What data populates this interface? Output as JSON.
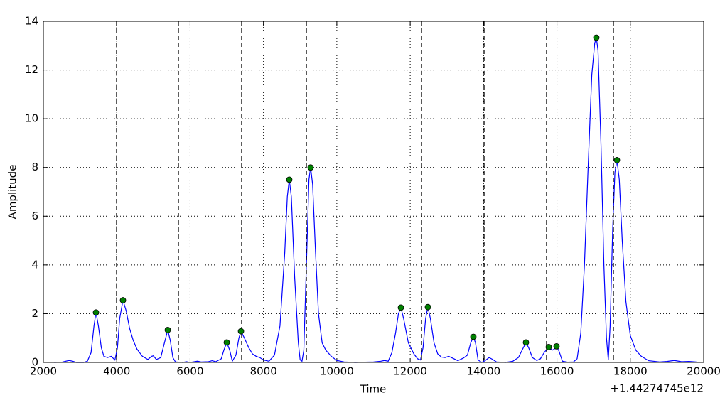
{
  "chart_data": {
    "type": "line",
    "xlabel": "Time",
    "ylabel": "Amplitude",
    "x_offset_label": "+1.44274745e12",
    "color": "#0000ff",
    "x": [
      2300,
      2500,
      2700,
      2800,
      2900,
      3100,
      3200,
      3300,
      3380,
      3434,
      3500,
      3580,
      3650,
      3750,
      3850,
      3950,
      4020,
      4080,
      4170,
      4260,
      4350,
      4450,
      4550,
      4700,
      4850,
      4950,
      5000,
      5080,
      5200,
      5300,
      5391,
      5460,
      5530,
      5600,
      5800,
      5900,
      6000,
      6200,
      6300,
      6500,
      6600,
      6700,
      6850,
      6920,
      6999,
      7080,
      7150,
      7250,
      7330,
      7387,
      7480,
      7600,
      7700,
      7800,
      7900,
      8000,
      8150,
      8300,
      8450,
      8580,
      8650,
      8704,
      8760,
      8850,
      8950,
      9000,
      9050,
      9100,
      9180,
      9240,
      9285,
      9340,
      9420,
      9500,
      9600,
      9700,
      9850,
      10000,
      10200,
      10500,
      11000,
      11200,
      11300,
      11400,
      11500,
      11600,
      11680,
      11746,
      11820,
      11950,
      12100,
      12200,
      12280,
      12350,
      12420,
      12482,
      12550,
      12650,
      12750,
      12850,
      12950,
      13050,
      13150,
      13300,
      13450,
      13560,
      13650,
      13722,
      13780,
      13850,
      13950,
      14050,
      14150,
      14250,
      14350,
      14600,
      14800,
      14950,
      15050,
      15156,
      15230,
      15330,
      15450,
      15550,
      15650,
      15776,
      15870,
      15930,
      15989,
      16060,
      16150,
      16300,
      16450,
      16550,
      16650,
      16750,
      16850,
      16950,
      17030,
      17074,
      17120,
      17200,
      17280,
      17350,
      17400,
      17450,
      17520,
      17580,
      17636,
      17700,
      17780,
      17880,
      18000,
      18150,
      18300,
      18500,
      18800,
      19000,
      19200,
      19400,
      19600,
      19800
    ],
    "values": [
      0,
      0.01,
      0.08,
      0.05,
      0,
      0,
      0.05,
      0.4,
      1.5,
      2.05,
      1.5,
      0.6,
      0.25,
      0.2,
      0.25,
      0.1,
      0.6,
      1.8,
      2.55,
      2.1,
      1.4,
      0.9,
      0.55,
      0.25,
      0.12,
      0.25,
      0.27,
      0.12,
      0.2,
      0.8,
      1.33,
      0.9,
      0.2,
      0.02,
      0,
      0.03,
      0,
      0.05,
      0.02,
      0.03,
      0.07,
      0.03,
      0.15,
      0.5,
      0.82,
      0.5,
      0.05,
      0.3,
      1.0,
      1.28,
      1.0,
      0.6,
      0.35,
      0.25,
      0.2,
      0.1,
      0.05,
      0.3,
      1.5,
      4.5,
      6.8,
      7.5,
      6.8,
      3.5,
      0.8,
      0.1,
      0.05,
      0.5,
      4.5,
      7.5,
      8.0,
      7.3,
      4.5,
      2,
      0.8,
      0.5,
      0.25,
      0.08,
      0.02,
      0,
      0.02,
      0.05,
      0.08,
      0.05,
      0.4,
      1.2,
      2.0,
      2.25,
      1.8,
      0.8,
      0.35,
      0.15,
      0.1,
      0.6,
      1.8,
      2.27,
      1.8,
      0.8,
      0.35,
      0.22,
      0.2,
      0.25,
      0.18,
      0.07,
      0.18,
      0.3,
      0.8,
      1.05,
      0.8,
      0.1,
      0,
      0.08,
      0.2,
      0.12,
      0.02,
      0,
      0.05,
      0.2,
      0.5,
      0.82,
      0.6,
      0.2,
      0.08,
      0.15,
      0.4,
      0.63,
      0.5,
      0.55,
      0.66,
      0.45,
      0.05,
      0.01,
      0.02,
      0.15,
      1.2,
      4,
      8,
      11.8,
      13.1,
      13.33,
      12.8,
      9,
      4,
      1,
      0.1,
      1.5,
      5.5,
      7.8,
      8.3,
      7.5,
      5,
      2.5,
      1.1,
      0.5,
      0.25,
      0.07,
      0.02,
      0.04,
      0.08,
      0.03,
      0.04,
      0.02
    ],
    "peaks": {
      "color": "#008000",
      "x": [
        3434,
        4170,
        5391,
        6999,
        7387,
        8704,
        9285,
        11746,
        12482,
        13722,
        15156,
        15776,
        15989,
        17074,
        17636
      ],
      "values": [
        2.05,
        2.55,
        1.33,
        0.82,
        1.28,
        7.5,
        8.0,
        2.25,
        2.27,
        1.05,
        0.82,
        0.63,
        0.66,
        13.33,
        8.3
      ]
    },
    "vlines": [
      3996,
      5681,
      7406,
      9169,
      12308,
      14013,
      15718,
      17539
    ],
    "xlim": [
      2000,
      20000
    ],
    "xticks": [
      2000,
      4000,
      6000,
      8000,
      10000,
      12000,
      14000,
      16000,
      18000,
      20000
    ],
    "ylim": [
      0,
      14
    ],
    "yticks": [
      0,
      2,
      4,
      6,
      8,
      10,
      12,
      14
    ],
    "grid": true
  }
}
